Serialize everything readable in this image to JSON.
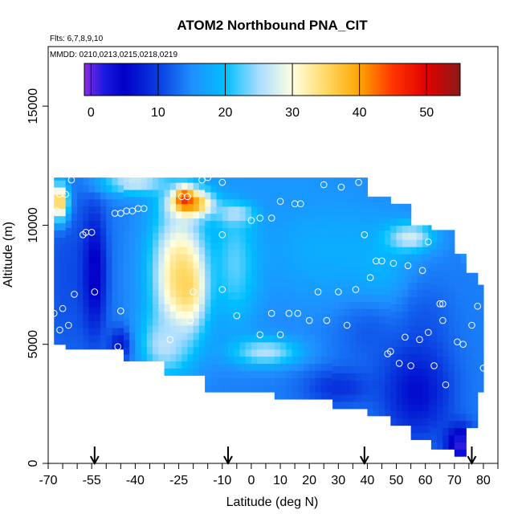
{
  "chart_data": {
    "type": "heatmap",
    "title": "ATOM2 Northbound PNA_CIT",
    "subtitle_flights": "Flts: 6,7,8,9,10",
    "subtitle_dates": "MMDD: 0210,0213,0215,0218,0219",
    "xlabel": "Latitude (deg N)",
    "ylabel": "Altitude (m)",
    "xlim": [
      -70,
      85
    ],
    "ylim": [
      0,
      17500
    ],
    "x_ticks": [
      -70,
      -55,
      -40,
      -25,
      -10,
      0,
      10,
      20,
      30,
      40,
      50,
      60,
      70,
      80
    ],
    "x_tick_labels": [
      "-70",
      "-55",
      "-40",
      "-25",
      "-10",
      "0",
      "10",
      "20",
      "30",
      "40",
      "50",
      "60",
      "70",
      "80"
    ],
    "x_minor_ticks": [
      -65,
      -60,
      -50,
      -45,
      -35,
      -30,
      -20,
      -15,
      -5,
      5,
      15,
      25,
      35,
      45,
      55,
      65,
      75,
      85
    ],
    "y_ticks": [
      0,
      5000,
      10000,
      15000
    ],
    "y_tick_labels": [
      "0",
      "5000",
      "10000",
      "15000"
    ],
    "colorbar": {
      "range": [
        -1,
        55
      ],
      "ticks": [
        0,
        10,
        20,
        30,
        40,
        50
      ],
      "tick_labels": [
        "0",
        "10",
        "20",
        "30",
        "40",
        "50"
      ],
      "color_stops": [
        {
          "value": -1,
          "color": "#8a2be2"
        },
        {
          "value": 2,
          "color": "#1a1adf"
        },
        {
          "value": 5,
          "color": "#0000c8"
        },
        {
          "value": 10,
          "color": "#0a3ce0"
        },
        {
          "value": 15,
          "color": "#1f8fff"
        },
        {
          "value": 20,
          "color": "#00bfff"
        },
        {
          "value": 25,
          "color": "#a8dcff"
        },
        {
          "value": 30,
          "color": "#ffffe0"
        },
        {
          "value": 35,
          "color": "#ffd966"
        },
        {
          "value": 40,
          "color": "#ffa500"
        },
        {
          "value": 45,
          "color": "#ff3300"
        },
        {
          "value": 50,
          "color": "#e00000"
        },
        {
          "value": 55,
          "color": "#8b1a1a"
        }
      ]
    },
    "arrows_latitude": [
      -54,
      -8,
      39,
      76
    ],
    "curtain_columns": [
      {
        "lat_min": -68,
        "lat_max": -64,
        "alt_min": 5000,
        "alt_max": 12000
      },
      {
        "lat_min": -64,
        "lat_max": -44,
        "alt_min": 4800,
        "alt_max": 12000
      },
      {
        "lat_min": -44,
        "lat_max": -30,
        "alt_min": 4300,
        "alt_max": 12000
      },
      {
        "lat_min": -30,
        "lat_max": -16,
        "alt_min": 3700,
        "alt_max": 12000
      },
      {
        "lat_min": -16,
        "lat_max": 8,
        "alt_min": 3000,
        "alt_max": 12000
      },
      {
        "lat_min": 8,
        "lat_max": 28,
        "alt_min": 2700,
        "alt_max": 12000
      },
      {
        "lat_min": 28,
        "lat_max": 40,
        "alt_min": 2300,
        "alt_max": 12000
      },
      {
        "lat_min": 40,
        "lat_max": 48,
        "alt_min": 2000,
        "alt_max": 11200
      },
      {
        "lat_min": 48,
        "lat_max": 55,
        "alt_min": 1600,
        "alt_max": 10900
      },
      {
        "lat_min": 55,
        "lat_max": 62,
        "alt_min": 1000,
        "alt_max": 10000
      },
      {
        "lat_min": 62,
        "lat_max": 70,
        "alt_min": 600,
        "alt_max": 9800
      },
      {
        "lat_min": 70,
        "lat_max": 74,
        "alt_min": 300,
        "alt_max": 8800
      },
      {
        "lat_min": 74,
        "lat_max": 78,
        "alt_min": 1500,
        "alt_max": 8000
      },
      {
        "lat_min": 78,
        "lat_max": 80,
        "alt_min": 3000,
        "alt_max": 7500
      }
    ],
    "curtain_blobs": [
      {
        "lat": -63,
        "alt": 8000,
        "rlat": 10,
        "ralt": 4500,
        "value": 11
      },
      {
        "lat": -54,
        "alt": 8000,
        "rlat": 4,
        "ralt": 2500,
        "value": 4
      },
      {
        "lat": -45,
        "alt": 5000,
        "rlat": 4,
        "ralt": 700,
        "value": 6
      },
      {
        "lat": -25,
        "alt": 8000,
        "rlat": 10,
        "ralt": 3000,
        "value": 33
      },
      {
        "lat": -22,
        "alt": 7500,
        "rlat": 6,
        "ralt": 1500,
        "value": 36
      },
      {
        "lat": -20,
        "alt": 11000,
        "rlat": 8,
        "ralt": 600,
        "value": 44
      },
      {
        "lat": -23,
        "alt": 11200,
        "rlat": 3,
        "ralt": 400,
        "value": 51
      },
      {
        "lat": -66,
        "alt": 11000,
        "rlat": 3,
        "ralt": 800,
        "value": 38
      },
      {
        "lat": -5,
        "alt": 10500,
        "rlat": 6,
        "ralt": 500,
        "value": 32
      },
      {
        "lat": -5,
        "alt": 8500,
        "rlat": 8,
        "ralt": 2500,
        "value": 24
      },
      {
        "lat": -30,
        "alt": 5000,
        "rlat": 8,
        "ralt": 1200,
        "value": 26
      },
      {
        "lat": 5,
        "alt": 4700,
        "rlat": 12,
        "ralt": 600,
        "value": 26
      },
      {
        "lat": 25,
        "alt": 9000,
        "rlat": 25,
        "ralt": 2500,
        "value": 18
      },
      {
        "lat": 45,
        "alt": 8000,
        "rlat": 12,
        "ralt": 2000,
        "value": 19
      },
      {
        "lat": 55,
        "alt": 9500,
        "rlat": 8,
        "ralt": 600,
        "value": 28
      },
      {
        "lat": 77,
        "alt": 9000,
        "rlat": 3,
        "ralt": 400,
        "value": 30
      },
      {
        "lat": 40,
        "alt": 5500,
        "rlat": 12,
        "ralt": 1500,
        "value": 12
      },
      {
        "lat": 60,
        "alt": 6000,
        "rlat": 10,
        "ralt": 2000,
        "value": 12
      },
      {
        "lat": 57,
        "alt": 3000,
        "rlat": 12,
        "ralt": 2000,
        "value": 6
      },
      {
        "lat": 30,
        "alt": 3200,
        "rlat": 12,
        "ralt": 800,
        "value": 9
      },
      {
        "lat": 72,
        "alt": 800,
        "rlat": 5,
        "ralt": 800,
        "value": 1
      },
      {
        "lat": 10,
        "alt": 11500,
        "rlat": 25,
        "ralt": 600,
        "value": 16
      },
      {
        "lat": -40,
        "alt": 11800,
        "rlat": 12,
        "ralt": 500,
        "value": 27
      }
    ],
    "sample_points": [
      {
        "lat": -68,
        "alt": 6300
      },
      {
        "lat": -66,
        "alt": 5600
      },
      {
        "lat": -65,
        "alt": 6500
      },
      {
        "lat": -63,
        "alt": 5800
      },
      {
        "lat": -61,
        "alt": 7100
      },
      {
        "lat": -54,
        "alt": 7200
      },
      {
        "lat": -46,
        "alt": 4900
      },
      {
        "lat": -45,
        "alt": 6400
      },
      {
        "lat": -28,
        "alt": 5200
      },
      {
        "lat": -21,
        "alt": 6000
      },
      {
        "lat": -20,
        "alt": 7200
      },
      {
        "lat": -10,
        "alt": 7300
      },
      {
        "lat": -5,
        "alt": 6200
      },
      {
        "lat": 3,
        "alt": 5400
      },
      {
        "lat": 7,
        "alt": 6300
      },
      {
        "lat": 10,
        "alt": 5400
      },
      {
        "lat": 13,
        "alt": 6300
      },
      {
        "lat": 16,
        "alt": 6300
      },
      {
        "lat": 20,
        "alt": 6000
      },
      {
        "lat": 23,
        "alt": 7200
      },
      {
        "lat": 26,
        "alt": 6000
      },
      {
        "lat": 30,
        "alt": 7200
      },
      {
        "lat": 33,
        "alt": 5800
      },
      {
        "lat": 36,
        "alt": 7300
      },
      {
        "lat": 41,
        "alt": 7800
      },
      {
        "lat": 43,
        "alt": 8500
      },
      {
        "lat": 45,
        "alt": 8500
      },
      {
        "lat": 49,
        "alt": 8400
      },
      {
        "lat": 54,
        "alt": 8300
      },
      {
        "lat": 59,
        "alt": 8100
      },
      {
        "lat": 47,
        "alt": 4600
      },
      {
        "lat": 48,
        "alt": 4700
      },
      {
        "lat": 51,
        "alt": 4200
      },
      {
        "lat": 53,
        "alt": 5300
      },
      {
        "lat": 55,
        "alt": 4100
      },
      {
        "lat": 58,
        "alt": 5200
      },
      {
        "lat": 61,
        "alt": 5500
      },
      {
        "lat": 63,
        "alt": 4100
      },
      {
        "lat": 65,
        "alt": 6700
      },
      {
        "lat": 66,
        "alt": 6000
      },
      {
        "lat": 66,
        "alt": 6700
      },
      {
        "lat": 67,
        "alt": 3300
      },
      {
        "lat": 71,
        "alt": 5100
      },
      {
        "lat": 73,
        "alt": 5000
      },
      {
        "lat": 76,
        "alt": 5800
      },
      {
        "lat": 78,
        "alt": 6600
      },
      {
        "lat": 80,
        "alt": 4000
      },
      {
        "lat": -58,
        "alt": 9600
      },
      {
        "lat": -57,
        "alt": 9700
      },
      {
        "lat": -55,
        "alt": 9700
      },
      {
        "lat": -47,
        "alt": 10500
      },
      {
        "lat": -45,
        "alt": 10500
      },
      {
        "lat": -43,
        "alt": 10600
      },
      {
        "lat": -41,
        "alt": 10600
      },
      {
        "lat": -39,
        "alt": 10700
      },
      {
        "lat": -37,
        "alt": 10700
      },
      {
        "lat": -24,
        "alt": 11200
      },
      {
        "lat": -22,
        "alt": 11200
      },
      {
        "lat": -10,
        "alt": 9600
      },
      {
        "lat": 0,
        "alt": 10200
      },
      {
        "lat": 3,
        "alt": 10300
      },
      {
        "lat": 7,
        "alt": 10300
      },
      {
        "lat": 10,
        "alt": 11000
      },
      {
        "lat": 15,
        "alt": 10900
      },
      {
        "lat": 17,
        "alt": 10900
      },
      {
        "lat": 39,
        "alt": 9600
      },
      {
        "lat": 61,
        "alt": 9300
      },
      {
        "lat": -67,
        "alt": 10600
      },
      {
        "lat": -66,
        "alt": 11300
      },
      {
        "lat": -64,
        "alt": 11300
      },
      {
        "lat": -62,
        "alt": 11900
      },
      {
        "lat": -17,
        "alt": 11900
      },
      {
        "lat": -15,
        "alt": 12000
      },
      {
        "lat": -10,
        "alt": 11800
      },
      {
        "lat": 25,
        "alt": 11700
      },
      {
        "lat": 31,
        "alt": 11600
      },
      {
        "lat": 37,
        "alt": 11800
      }
    ],
    "grid": false,
    "legend": "colorbar top inside plot"
  }
}
